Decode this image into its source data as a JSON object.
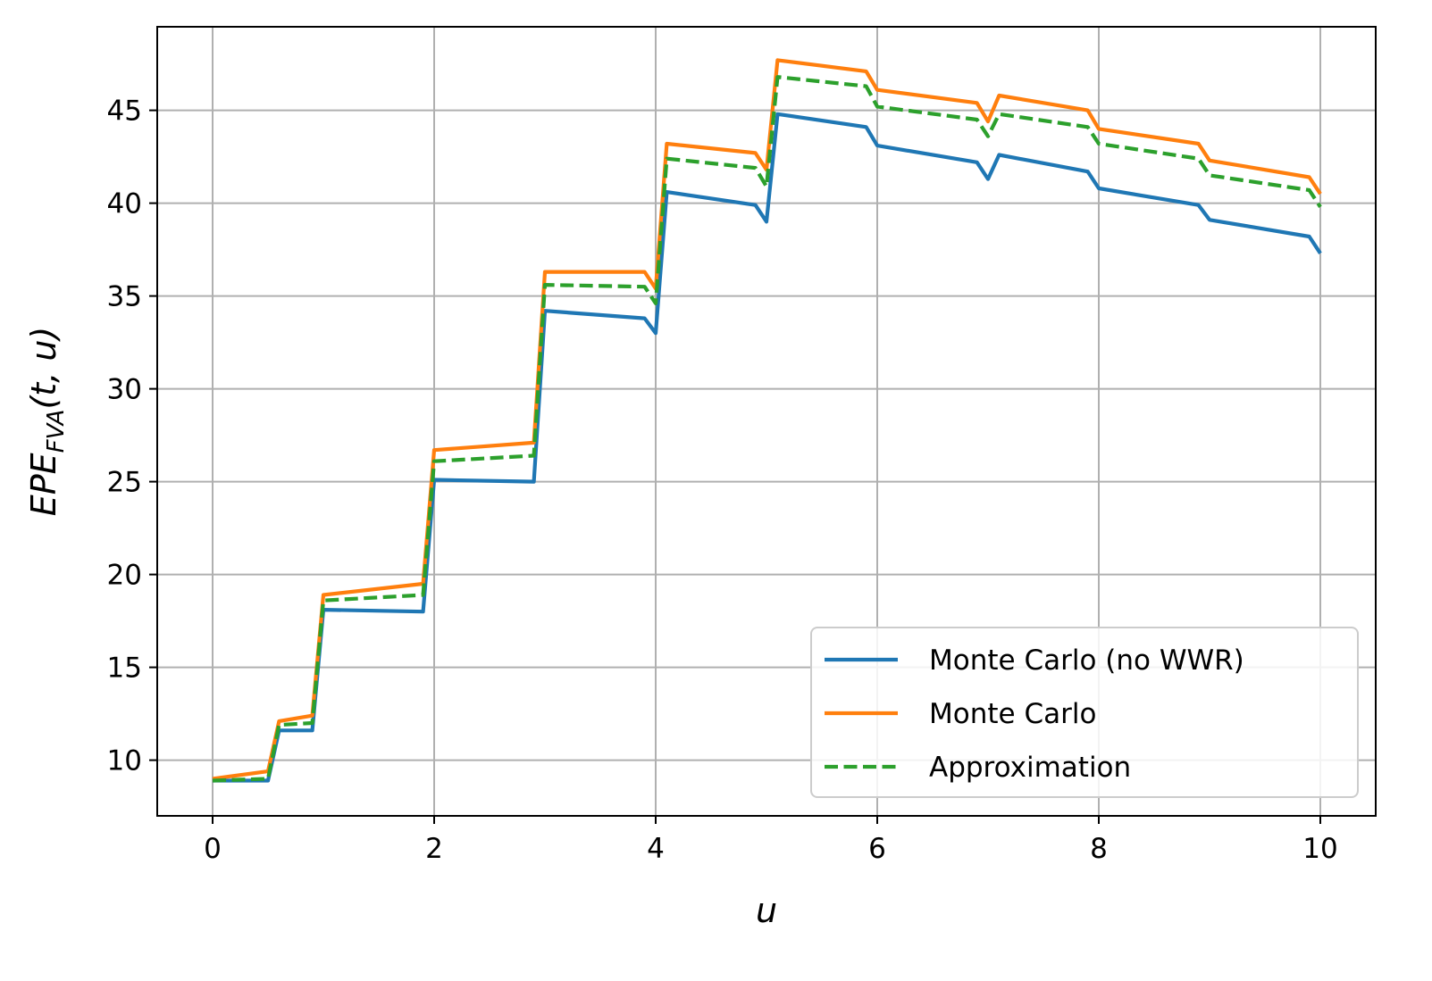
{
  "chart_data": {
    "type": "line",
    "title": "",
    "xlabel": "u",
    "ylabel": {
      "main": "EPE",
      "sub": "FVA",
      "args": "(t, u)"
    },
    "xlim": [
      -0.5,
      10.5
    ],
    "ylim": [
      7,
      49.5
    ],
    "xticks": [
      0,
      2,
      4,
      6,
      8,
      10
    ],
    "yticks": [
      10,
      15,
      20,
      25,
      30,
      35,
      40,
      45
    ],
    "grid": true,
    "legend_position": "lower-right",
    "series": [
      {
        "name": "Monte Carlo (no WWR)",
        "color": "#1f77b4",
        "style": "solid",
        "x": [
          0,
          0.5,
          0.6,
          0.9,
          1.0,
          1.9,
          2.0,
          2.9,
          3.0,
          3.9,
          4.0,
          4.1,
          4.9,
          5.0,
          5.1,
          5.9,
          6.0,
          6.9,
          7.0,
          7.1,
          7.9,
          8.0,
          8.9,
          9.0,
          9.9,
          10.0
        ],
        "y": [
          8.9,
          8.9,
          11.6,
          11.6,
          18.1,
          18.0,
          25.1,
          25.0,
          34.2,
          33.8,
          33.0,
          40.6,
          39.9,
          39.0,
          44.8,
          44.1,
          43.1,
          42.2,
          41.3,
          42.6,
          41.7,
          40.8,
          39.9,
          39.1,
          38.2,
          37.3
        ]
      },
      {
        "name": "Monte Carlo",
        "color": "#ff7f0e",
        "style": "solid",
        "x": [
          0,
          0.5,
          0.6,
          0.9,
          1.0,
          1.9,
          2.0,
          2.9,
          3.0,
          3.9,
          4.0,
          4.1,
          4.9,
          5.0,
          5.1,
          5.9,
          6.0,
          6.9,
          7.0,
          7.1,
          7.9,
          8.0,
          8.9,
          9.0,
          9.9,
          10.0
        ],
        "y": [
          9.0,
          9.4,
          12.1,
          12.4,
          18.9,
          19.5,
          26.7,
          27.1,
          36.3,
          36.3,
          35.4,
          43.2,
          42.7,
          41.8,
          47.7,
          47.1,
          46.1,
          45.4,
          44.4,
          45.8,
          45.0,
          44.0,
          43.2,
          42.3,
          41.4,
          40.5
        ]
      },
      {
        "name": "Approximation",
        "color": "#2ca02c",
        "style": "dashed",
        "x": [
          0,
          0.5,
          0.6,
          0.9,
          1.0,
          1.9,
          2.0,
          2.9,
          3.0,
          3.9,
          4.0,
          4.1,
          4.9,
          5.0,
          5.1,
          5.9,
          6.0,
          6.9,
          7.0,
          7.1,
          7.9,
          8.0,
          8.9,
          9.0,
          9.9,
          10.0
        ],
        "y": [
          8.9,
          9.0,
          11.9,
          12.0,
          18.6,
          18.9,
          26.1,
          26.4,
          35.6,
          35.5,
          34.6,
          42.4,
          41.9,
          40.9,
          46.8,
          46.3,
          45.2,
          44.5,
          43.6,
          44.8,
          44.1,
          43.2,
          42.4,
          41.5,
          40.7,
          39.8
        ]
      }
    ]
  }
}
